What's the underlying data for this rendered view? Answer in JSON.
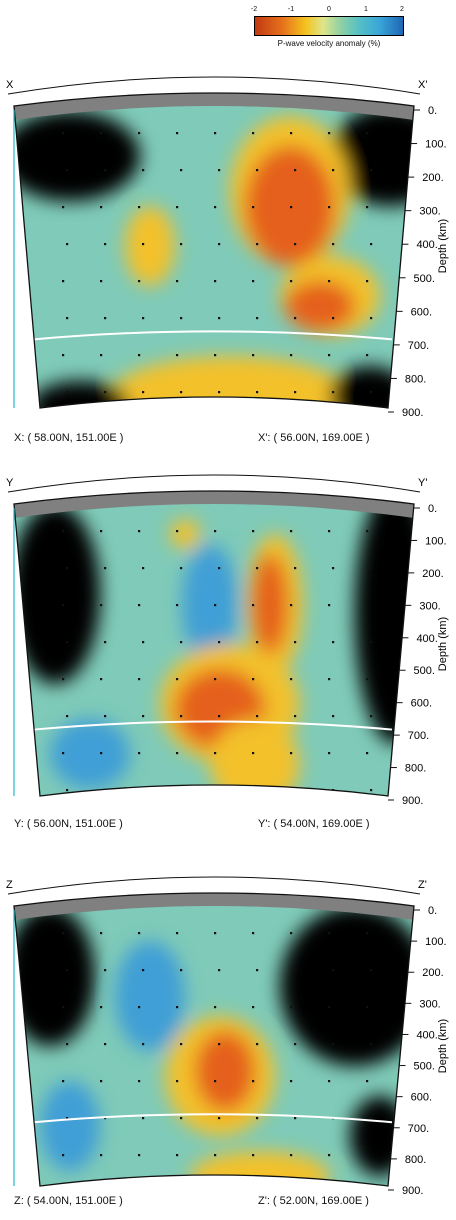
{
  "colorbar": {
    "ticks": [
      "-2",
      "-1",
      "0",
      "1",
      "2"
    ],
    "label": "P-wave velocity anomaly (%)"
  },
  "depth_axis": {
    "title": "Depth (km)",
    "ticks": [
      "0.",
      "100.",
      "200.",
      "300.",
      "400.",
      "500.",
      "600.",
      "700.",
      "800.",
      "900."
    ]
  },
  "sections": [
    {
      "start_letter": "X",
      "end_letter": "X'",
      "start_coord": "X: ( 58.00N, 151.00E )",
      "end_coord": "X': ( 56.00N, 169.00E )"
    },
    {
      "start_letter": "Y",
      "end_letter": "Y'",
      "start_coord": "Y: ( 56.00N, 151.00E )",
      "end_coord": "Y': ( 54.00N, 169.00E )"
    },
    {
      "start_letter": "Z",
      "end_letter": "Z'",
      "start_coord": "Z: ( 54.00N, 151.00E )",
      "end_coord": "Z': ( 52.00N, 169.00E )"
    }
  ],
  "colors": {
    "background": "#7fcab8",
    "crust": "#808080",
    "discontinuity": "#ffffff",
    "slow_strong": "#e5601c",
    "slow": "#f3c12a",
    "fast": "#3f9fd6",
    "no_data": "#000000"
  }
}
